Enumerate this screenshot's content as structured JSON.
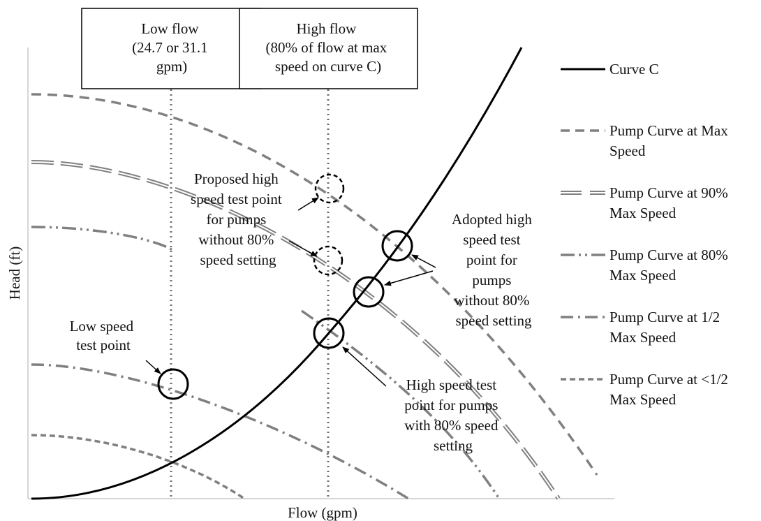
{
  "title": "",
  "axes": {
    "xlabel": "Flow (gpm)",
    "ylabel": "Head (ft)"
  },
  "boxes": {
    "low_flow": [
      "Low flow",
      "(24.7 or 31.1",
      "gpm)"
    ],
    "high_flow": [
      "High flow",
      "(80% of flow at max",
      "speed on curve C)"
    ]
  },
  "annotations": {
    "low_speed": [
      "Low speed",
      "test point"
    ],
    "proposed_high": [
      "Proposed high",
      "speed test point",
      "for pumps",
      "without 80%",
      "speed setting"
    ],
    "adopted_high": [
      "Adopted high",
      "speed test",
      "point for",
      "pumps",
      "without 80%",
      "speed setting"
    ],
    "high_speed_80": [
      "High speed test",
      "point for pumps",
      "with 80% speed",
      "setting"
    ]
  },
  "legend": {
    "curve_c": [
      "Curve C"
    ],
    "pump_max": [
      "Pump Curve at Max",
      "Speed"
    ],
    "pump_90": [
      "Pump Curve at 90%",
      "Max Speed"
    ],
    "pump_80": [
      "Pump Curve at 80%",
      "Max Speed"
    ],
    "pump_half": [
      "Pump Curve at 1/2",
      "Max Speed"
    ],
    "pump_less_half": [
      "Pump Curve at <1/2",
      "Max Speed"
    ]
  },
  "colors": {
    "curve_c": "#000000",
    "pump_curves": "#808080",
    "reference_lines": "#707070",
    "markers": "#000000"
  }
}
